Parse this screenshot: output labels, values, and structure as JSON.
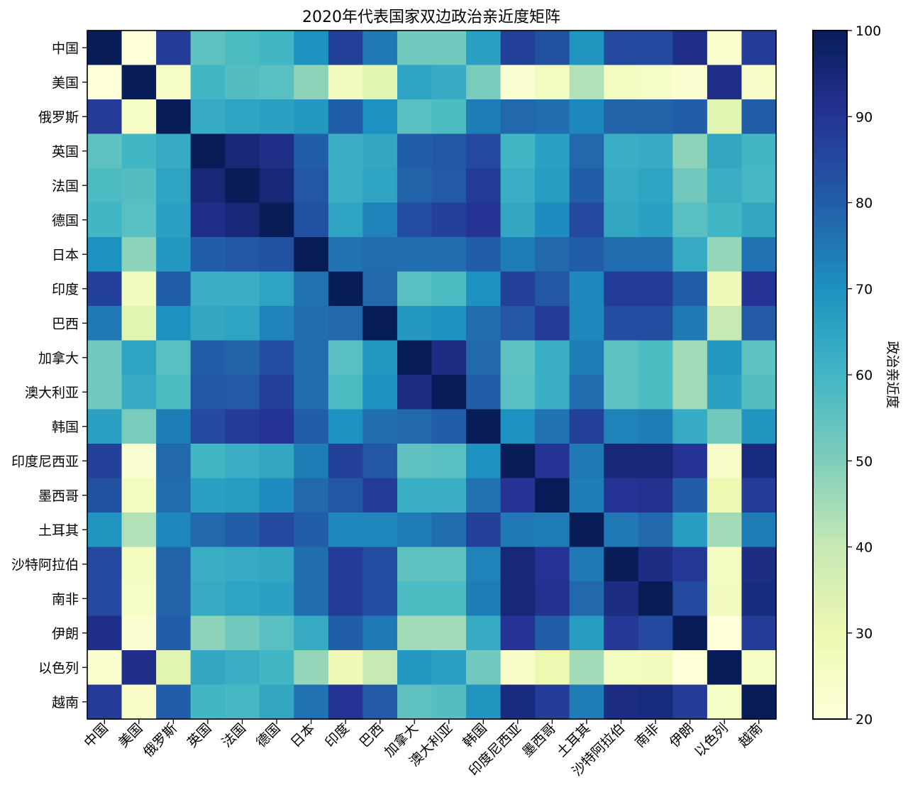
{
  "chart_data": {
    "type": "heatmap",
    "title": "2020年代表国家双边政治亲近度矩阵",
    "xlabel": "",
    "ylabel": "",
    "colorbar_label": "政治亲近度",
    "colorbar_range": [
      20,
      100
    ],
    "colorbar_ticks": [
      20,
      30,
      40,
      50,
      60,
      70,
      80,
      90,
      100
    ],
    "colormap": "YlGnBu",
    "colormap_stops": [
      "#ffffd9",
      "#edf8b1",
      "#c7e9b4",
      "#7fcdbb",
      "#41b6c4",
      "#1d91c0",
      "#225ea8",
      "#253494",
      "#081d58"
    ],
    "grid": false,
    "countries": [
      "中国",
      "美国",
      "俄罗斯",
      "英国",
      "法国",
      "德国",
      "日本",
      "印度",
      "巴西",
      "加拿大",
      "澳大利亚",
      "韩国",
      "印度尼西亚",
      "墨西哥",
      "土耳其",
      "沙特阿拉伯",
      "南非",
      "伊朗",
      "以色列",
      "越南"
    ],
    "matrix": [
      [
        100,
        20,
        88,
        55,
        58,
        60,
        70,
        87,
        75,
        52,
        52,
        66,
        87,
        83,
        69,
        85,
        85,
        92,
        23,
        88
      ],
      [
        20,
        100,
        25,
        60,
        57,
        56,
        48,
        27,
        33,
        65,
        63,
        51,
        22,
        26,
        43,
        26,
        25,
        22,
        92,
        24
      ],
      [
        88,
        25,
        100,
        63,
        65,
        66,
        68,
        80,
        70,
        56,
        58,
        74,
        78,
        77,
        72,
        79,
        79,
        80,
        33,
        80
      ],
      [
        55,
        60,
        63,
        100,
        95,
        92,
        80,
        62,
        64,
        80,
        82,
        85,
        60,
        66,
        78,
        62,
        63,
        48,
        64,
        60
      ],
      [
        58,
        57,
        65,
        95,
        100,
        95,
        82,
        62,
        65,
        79,
        81,
        88,
        62,
        67,
        80,
        63,
        65,
        52,
        62,
        59
      ],
      [
        60,
        56,
        66,
        92,
        95,
        100,
        83,
        65,
        73,
        84,
        87,
        90,
        64,
        71,
        85,
        64,
        66,
        56,
        60,
        64
      ],
      [
        70,
        48,
        68,
        80,
        82,
        83,
        100,
        76,
        77,
        77,
        77,
        80,
        74,
        78,
        80,
        77,
        77,
        63,
        47,
        76
      ],
      [
        87,
        27,
        80,
        62,
        62,
        65,
        76,
        100,
        78,
        56,
        58,
        70,
        87,
        82,
        72,
        88,
        88,
        80,
        28,
        90
      ],
      [
        75,
        33,
        70,
        64,
        65,
        73,
        77,
        78,
        100,
        68,
        70,
        77,
        82,
        88,
        72,
        84,
        84,
        75,
        40,
        81
      ],
      [
        52,
        65,
        56,
        80,
        79,
        84,
        77,
        56,
        68,
        100,
        93,
        78,
        55,
        62,
        74,
        55,
        58,
        45,
        68,
        55
      ],
      [
        52,
        63,
        58,
        82,
        81,
        87,
        77,
        58,
        70,
        93,
        100,
        80,
        56,
        62,
        77,
        55,
        58,
        45,
        66,
        57
      ],
      [
        66,
        51,
        74,
        85,
        88,
        90,
        80,
        70,
        77,
        78,
        80,
        100,
        70,
        76,
        87,
        73,
        74,
        63,
        52,
        69
      ],
      [
        87,
        22,
        78,
        60,
        62,
        64,
        74,
        87,
        82,
        55,
        56,
        70,
        100,
        90,
        75,
        95,
        95,
        90,
        24,
        94
      ],
      [
        83,
        26,
        77,
        66,
        67,
        71,
        78,
        82,
        88,
        62,
        62,
        76,
        90,
        100,
        74,
        90,
        91,
        80,
        30,
        88
      ],
      [
        69,
        43,
        72,
        78,
        80,
        85,
        80,
        72,
        72,
        74,
        77,
        87,
        75,
        74,
        100,
        75,
        78,
        67,
        45,
        74
      ],
      [
        85,
        26,
        79,
        62,
        63,
        64,
        77,
        88,
        84,
        55,
        55,
        73,
        95,
        90,
        75,
        100,
        93,
        89,
        26,
        93
      ],
      [
        85,
        25,
        79,
        63,
        65,
        66,
        77,
        88,
        84,
        58,
        58,
        74,
        95,
        91,
        78,
        93,
        100,
        85,
        27,
        94
      ],
      [
        92,
        22,
        80,
        48,
        52,
        56,
        63,
        80,
        75,
        45,
        45,
        63,
        90,
        80,
        67,
        89,
        85,
        100,
        20,
        88
      ],
      [
        23,
        92,
        33,
        64,
        62,
        60,
        47,
        28,
        40,
        68,
        66,
        52,
        24,
        30,
        45,
        26,
        27,
        20,
        100,
        25
      ],
      [
        88,
        24,
        80,
        60,
        59,
        64,
        76,
        90,
        81,
        55,
        57,
        69,
        94,
        88,
        74,
        93,
        94,
        88,
        25,
        100
      ]
    ]
  }
}
